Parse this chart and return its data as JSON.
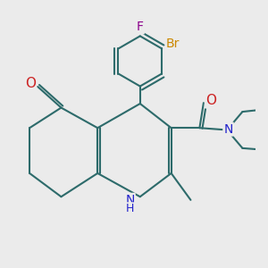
{
  "bg_color": "#ebebeb",
  "bond_color": "#2d6b6b",
  "atom_colors": {
    "N": "#2222cc",
    "O": "#cc2222",
    "F": "#8b008b",
    "Br": "#cc8800"
  }
}
